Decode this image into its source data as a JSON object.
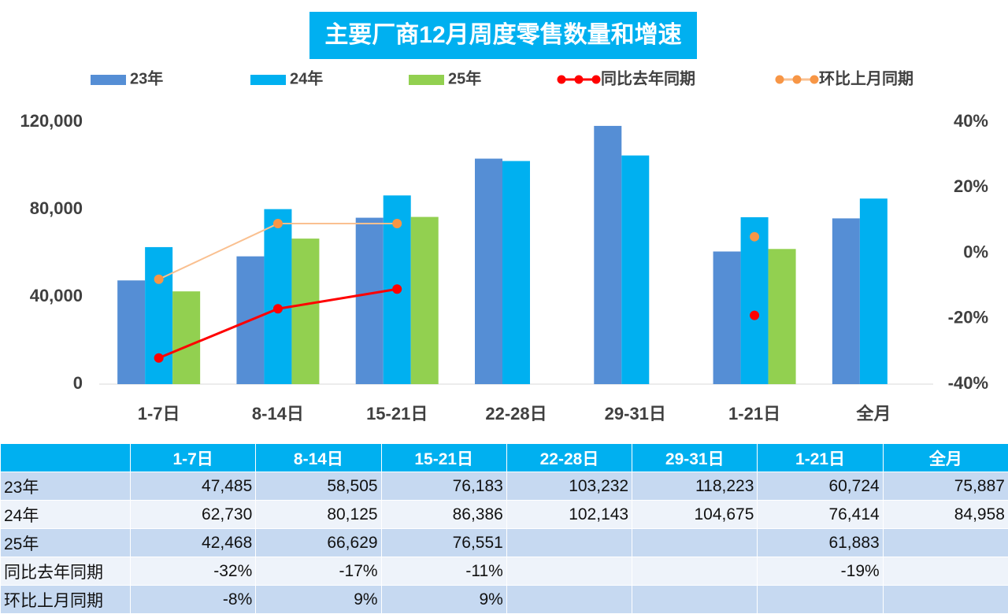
{
  "chart_data": {
    "type": "bar",
    "title": "主要厂商12月周度零售数量和增速",
    "categories": [
      "1-7日",
      "8-14日",
      "15-21日",
      "22-28日",
      "29-31日",
      "1-21日",
      "全月"
    ],
    "ylim": [
      0,
      120000
    ],
    "yticks": [
      0,
      {
        "value": 40000,
        "label": "40,000"
      },
      {
        "value": 80000,
        "label": "80,000"
      },
      {
        "value": 120000,
        "label": "120,000"
      }
    ],
    "y2lim": [
      -40,
      40
    ],
    "y2ticks": [
      {
        "value": -40,
        "label": "-40%"
      },
      {
        "value": -20,
        "label": "-20%"
      },
      {
        "value": 0,
        "label": "0%"
      },
      {
        "value": 20,
        "label": "20%"
      },
      {
        "value": 40,
        "label": "40%"
      }
    ],
    "series": [
      {
        "name": "23年",
        "type": "bar",
        "color": "#558ed5",
        "values": [
          47485,
          58505,
          76183,
          103232,
          118223,
          60724,
          75887
        ],
        "value_labels": [
          "47,485",
          "58,505",
          "76,183",
          "103,232",
          "118,223",
          "60,724",
          "75,887"
        ]
      },
      {
        "name": "24年",
        "type": "bar",
        "color": "#00b0f0",
        "values": [
          62730,
          80125,
          86386,
          102143,
          104675,
          76414,
          84958
        ],
        "value_labels": [
          "62,730",
          "80,125",
          "86,386",
          "102,143",
          "104,675",
          "76,414",
          "84,958"
        ]
      },
      {
        "name": "25年",
        "type": "bar",
        "color": "#92d050",
        "values": [
          42468,
          66629,
          76551,
          null,
          null,
          61883,
          null
        ],
        "value_labels": [
          "42,468",
          "66,629",
          "76,551",
          null,
          null,
          "61,883",
          null
        ]
      },
      {
        "name": "同比去年同期",
        "type": "line",
        "axis": "y2",
        "color": "#ff0000",
        "marker_color": "#ff0000",
        "values": [
          -32,
          -17,
          -11,
          null,
          null,
          -19,
          null
        ],
        "value_labels": [
          "-32%",
          "-17%",
          "-11%",
          null,
          null,
          "-19%",
          null
        ]
      },
      {
        "name": "环比上月同期",
        "type": "line",
        "axis": "y2",
        "color": "#fac090",
        "marker_color": "#f79646",
        "values": [
          -8,
          9,
          9,
          null,
          null,
          5,
          null
        ],
        "value_labels": [
          "-8%",
          "9%",
          "9%",
          null,
          null,
          null,
          null
        ]
      }
    ]
  }
}
